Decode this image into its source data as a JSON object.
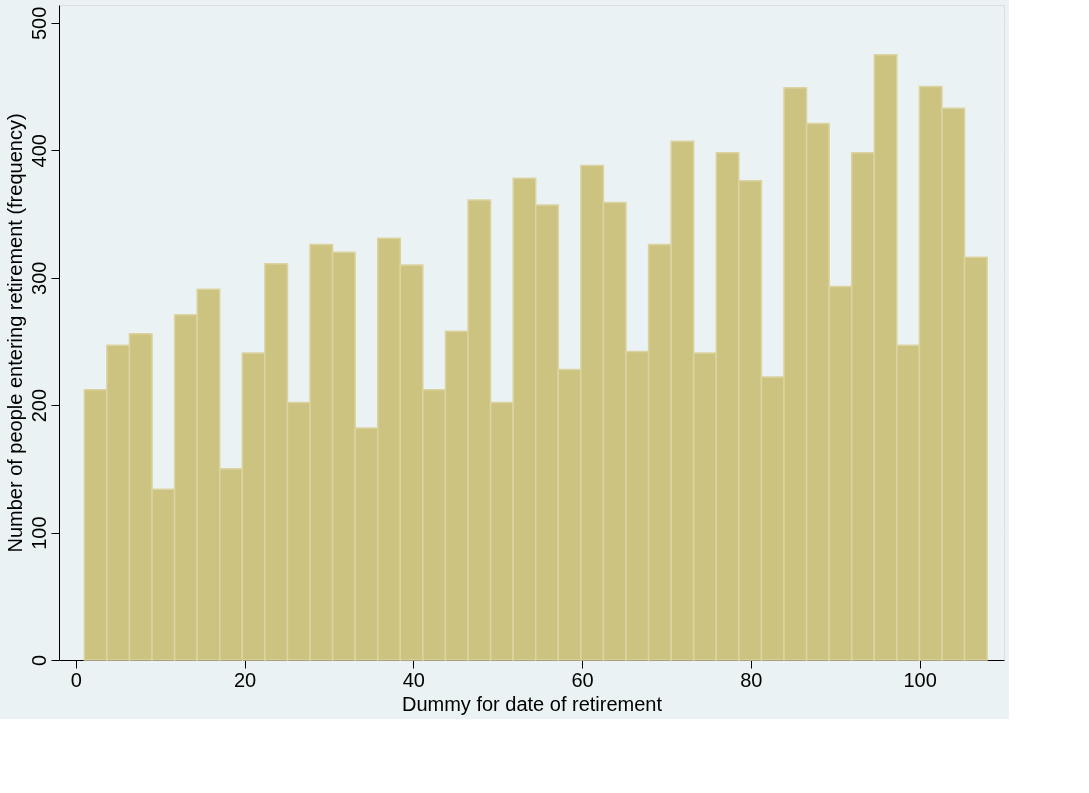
{
  "chart_data": {
    "type": "histogram",
    "xlabel": "Dummy for date of retirement",
    "ylabel": "Number of people entering retirement (frequency)",
    "bins": [
      1,
      3.675,
      6.35,
      9.025,
      11.7,
      14.375,
      17.05,
      19.725,
      22.4,
      25.075,
      27.75,
      30.425,
      33.1,
      35.775,
      38.45,
      41.125,
      43.8,
      46.475,
      49.15,
      51.825,
      54.5,
      57.175,
      59.85,
      62.525,
      65.2,
      67.875,
      70.55,
      73.225,
      75.9,
      78.575,
      81.25,
      83.925,
      86.6,
      89.275,
      91.95,
      94.625,
      97.3,
      99.975,
      102.65,
      105.325,
      108
    ],
    "values": [
      212,
      247,
      256,
      134,
      271,
      291,
      150,
      241,
      311,
      202,
      326,
      320,
      182,
      331,
      310,
      212,
      258,
      361,
      202,
      378,
      357,
      228,
      388,
      359,
      242,
      326,
      407,
      241,
      398,
      376,
      222,
      449,
      421,
      293,
      398,
      475,
      247,
      450,
      433,
      316
    ],
    "color": "#cbc37f",
    "xlim": [
      -2,
      110
    ],
    "xticks": [
      0,
      20,
      40,
      60,
      80,
      100
    ],
    "ylim": [
      0,
      514
    ],
    "yticks": [
      0,
      100,
      200,
      300,
      400,
      500
    ],
    "grid": "y"
  }
}
